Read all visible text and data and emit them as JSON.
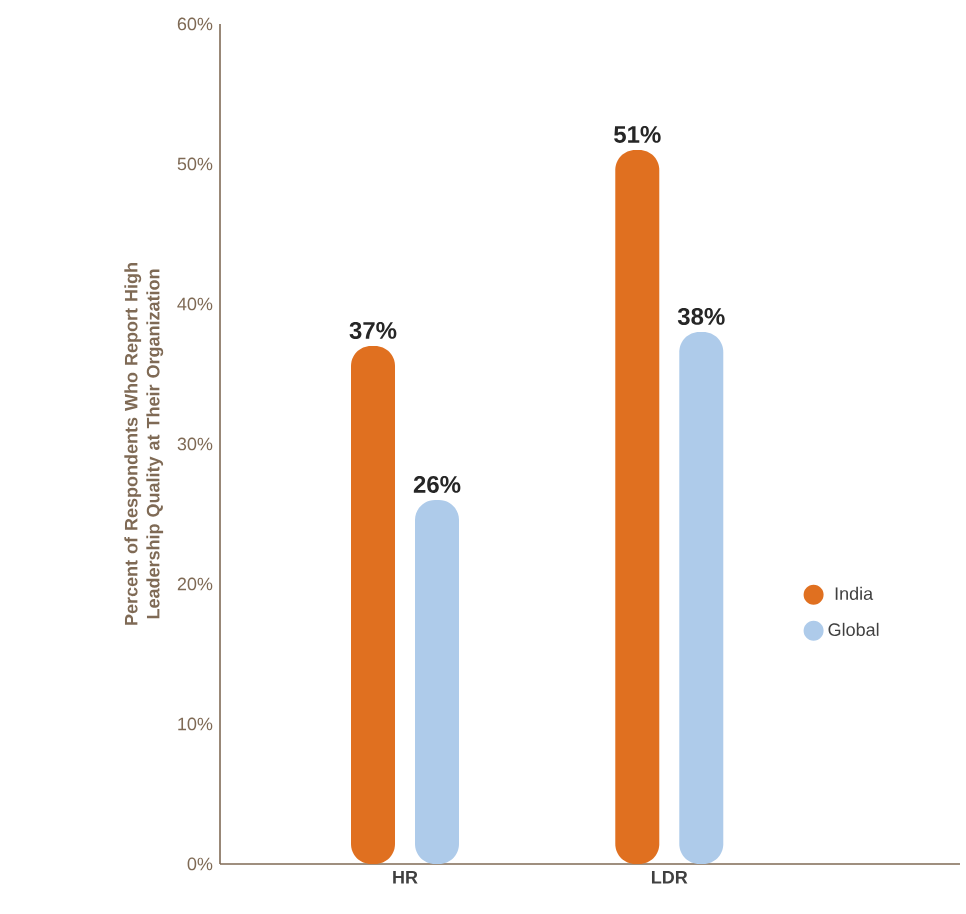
{
  "chart_data": {
    "type": "bar",
    "ylabel": "Percent of Respondents Who Report High Leadership Quality at Their Organization",
    "categories": [
      "HR",
      "LDR"
    ],
    "series": [
      {
        "name": "India",
        "color": "#e07020",
        "values": [
          37,
          51
        ],
        "value_labels": [
          "37%",
          "51%"
        ]
      },
      {
        "name": "Global",
        "color": "#aecbea",
        "values": [
          26,
          38
        ],
        "value_labels": [
          "26%",
          "38%"
        ]
      }
    ],
    "ylim": [
      0,
      60
    ],
    "yticks": [
      {
        "value": 0,
        "label": "0%"
      },
      {
        "value": 10,
        "label": "10%"
      },
      {
        "value": 20,
        "label": "20%"
      },
      {
        "value": 30,
        "label": "30%"
      },
      {
        "value": 40,
        "label": "40%"
      },
      {
        "value": 50,
        "label": "50%"
      },
      {
        "value": 60,
        "label": "60%"
      }
    ],
    "grid": false,
    "legend": "right"
  }
}
